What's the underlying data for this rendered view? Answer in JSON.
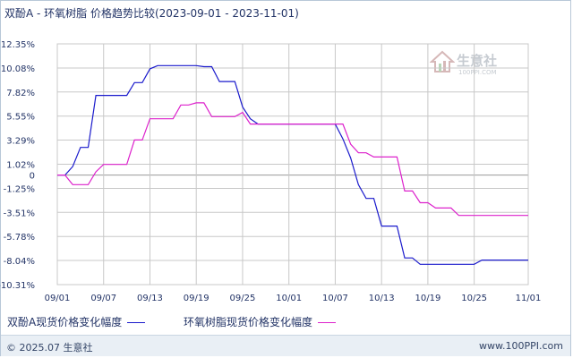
{
  "title": "双酚A - 环氧树脂 价格趋势比较(2023-09-01 - 2023-11-01)",
  "watermark": {
    "text": "生意社",
    "url": "100PPI.COM"
  },
  "footer": {
    "copyright": "© 2025.07 生意社",
    "url": "www.100PPI.com"
  },
  "colors": {
    "series1": "#1a1acc",
    "series2": "#dd22cc",
    "grid": "#c8c8c8",
    "zero_line": "#999999",
    "axis_text": "#223366"
  },
  "chart_data": {
    "type": "line",
    "title": "双酚A - 环氧树脂 价格趋势比较(2023-09-01 - 2023-11-01)",
    "xlabel": "",
    "ylabel": "",
    "x_range": [
      "2023-09-01",
      "2023-11-01"
    ],
    "ylim": [
      -10.31,
      12.35
    ],
    "y_ticks": [
      "12.35%",
      "10.08%",
      "7.82%",
      "5.55%",
      "3.29%",
      "1.02%",
      "0",
      "-1.25%",
      "-3.51%",
      "-5.78%",
      "-8.04%",
      "-10.31%"
    ],
    "y_tick_values": [
      12.35,
      10.08,
      7.82,
      5.55,
      3.29,
      1.02,
      0,
      -1.25,
      -3.51,
      -5.78,
      -8.04,
      -10.31
    ],
    "x_ticks": [
      "09/01",
      "09/07",
      "09/13",
      "09/19",
      "09/25",
      "10/01",
      "10/07",
      "10/13",
      "10/19",
      "10/25",
      "11/01"
    ],
    "x_tick_dates": [
      "2023-09-01",
      "2023-09-07",
      "2023-09-13",
      "2023-09-19",
      "2023-09-25",
      "2023-10-01",
      "2023-10-07",
      "2023-10-13",
      "2023-10-19",
      "2023-10-25",
      "2023-11-01"
    ],
    "grid": true,
    "legend_position": "bottom",
    "series": [
      {
        "name": "双酚A现货价格变化幅度",
        "color": "#1a1acc",
        "points": [
          [
            "2023-09-01",
            0
          ],
          [
            "2023-09-02",
            0
          ],
          [
            "2023-09-03",
            0.8
          ],
          [
            "2023-09-04",
            2.6
          ],
          [
            "2023-09-05",
            2.6
          ],
          [
            "2023-09-06",
            7.5
          ],
          [
            "2023-09-07",
            7.5
          ],
          [
            "2023-09-08",
            7.5
          ],
          [
            "2023-09-09",
            7.5
          ],
          [
            "2023-09-10",
            7.5
          ],
          [
            "2023-09-11",
            8.7
          ],
          [
            "2023-09-12",
            8.7
          ],
          [
            "2023-09-13",
            10.0
          ],
          [
            "2023-09-14",
            10.3
          ],
          [
            "2023-09-15",
            10.3
          ],
          [
            "2023-09-16",
            10.3
          ],
          [
            "2023-09-17",
            10.3
          ],
          [
            "2023-09-18",
            10.3
          ],
          [
            "2023-09-19",
            10.3
          ],
          [
            "2023-09-20",
            10.2
          ],
          [
            "2023-09-21",
            10.2
          ],
          [
            "2023-09-22",
            8.8
          ],
          [
            "2023-09-23",
            8.8
          ],
          [
            "2023-09-24",
            8.8
          ],
          [
            "2023-09-25",
            6.4
          ],
          [
            "2023-09-26",
            5.3
          ],
          [
            "2023-09-27",
            4.8
          ],
          [
            "2023-09-28",
            4.8
          ],
          [
            "2023-09-29",
            4.8
          ],
          [
            "2023-09-30",
            4.8
          ],
          [
            "2023-10-01",
            4.8
          ],
          [
            "2023-10-02",
            4.8
          ],
          [
            "2023-10-03",
            4.8
          ],
          [
            "2023-10-04",
            4.8
          ],
          [
            "2023-10-05",
            4.8
          ],
          [
            "2023-10-06",
            4.8
          ],
          [
            "2023-10-07",
            4.8
          ],
          [
            "2023-10-08",
            3.4
          ],
          [
            "2023-10-09",
            1.6
          ],
          [
            "2023-10-10",
            -0.9
          ],
          [
            "2023-10-11",
            -2.2
          ],
          [
            "2023-10-12",
            -2.2
          ],
          [
            "2023-10-13",
            -4.8
          ],
          [
            "2023-10-14",
            -4.8
          ],
          [
            "2023-10-15",
            -4.8
          ],
          [
            "2023-10-16",
            -7.8
          ],
          [
            "2023-10-17",
            -7.8
          ],
          [
            "2023-10-18",
            -8.4
          ],
          [
            "2023-10-19",
            -8.4
          ],
          [
            "2023-10-20",
            -8.4
          ],
          [
            "2023-10-21",
            -8.4
          ],
          [
            "2023-10-22",
            -8.4
          ],
          [
            "2023-10-23",
            -8.4
          ],
          [
            "2023-10-24",
            -8.4
          ],
          [
            "2023-10-25",
            -8.4
          ],
          [
            "2023-10-26",
            -8.0
          ],
          [
            "2023-10-27",
            -8.0
          ],
          [
            "2023-10-28",
            -8.0
          ],
          [
            "2023-10-29",
            -8.0
          ],
          [
            "2023-10-30",
            -8.0
          ],
          [
            "2023-10-31",
            -8.0
          ],
          [
            "2023-11-01",
            -8.0
          ]
        ]
      },
      {
        "name": "环氧树脂现货价格变化幅度",
        "color": "#dd22cc",
        "points": [
          [
            "2023-09-01",
            0
          ],
          [
            "2023-09-02",
            0
          ],
          [
            "2023-09-03",
            -0.9
          ],
          [
            "2023-09-04",
            -0.9
          ],
          [
            "2023-09-05",
            -0.9
          ],
          [
            "2023-09-06",
            0.3
          ],
          [
            "2023-09-07",
            1.0
          ],
          [
            "2023-09-08",
            1.0
          ],
          [
            "2023-09-09",
            1.0
          ],
          [
            "2023-09-10",
            1.0
          ],
          [
            "2023-09-11",
            3.3
          ],
          [
            "2023-09-12",
            3.3
          ],
          [
            "2023-09-13",
            5.3
          ],
          [
            "2023-09-14",
            5.3
          ],
          [
            "2023-09-15",
            5.3
          ],
          [
            "2023-09-16",
            5.3
          ],
          [
            "2023-09-17",
            6.6
          ],
          [
            "2023-09-18",
            6.6
          ],
          [
            "2023-09-19",
            6.8
          ],
          [
            "2023-09-20",
            6.8
          ],
          [
            "2023-09-21",
            5.5
          ],
          [
            "2023-09-22",
            5.5
          ],
          [
            "2023-09-23",
            5.5
          ],
          [
            "2023-09-24",
            5.5
          ],
          [
            "2023-09-25",
            5.9
          ],
          [
            "2023-09-26",
            4.8
          ],
          [
            "2023-09-27",
            4.8
          ],
          [
            "2023-09-28",
            4.8
          ],
          [
            "2023-09-29",
            4.8
          ],
          [
            "2023-09-30",
            4.8
          ],
          [
            "2023-10-01",
            4.8
          ],
          [
            "2023-10-02",
            4.8
          ],
          [
            "2023-10-03",
            4.8
          ],
          [
            "2023-10-04",
            4.8
          ],
          [
            "2023-10-05",
            4.8
          ],
          [
            "2023-10-06",
            4.8
          ],
          [
            "2023-10-07",
            4.8
          ],
          [
            "2023-10-08",
            4.8
          ],
          [
            "2023-10-09",
            2.9
          ],
          [
            "2023-10-10",
            2.1
          ],
          [
            "2023-10-11",
            2.1
          ],
          [
            "2023-10-12",
            1.7
          ],
          [
            "2023-10-13",
            1.7
          ],
          [
            "2023-10-14",
            1.7
          ],
          [
            "2023-10-15",
            1.7
          ],
          [
            "2023-10-16",
            -1.5
          ],
          [
            "2023-10-17",
            -1.5
          ],
          [
            "2023-10-18",
            -2.6
          ],
          [
            "2023-10-19",
            -2.6
          ],
          [
            "2023-10-20",
            -3.1
          ],
          [
            "2023-10-21",
            -3.1
          ],
          [
            "2023-10-22",
            -3.1
          ],
          [
            "2023-10-23",
            -3.8
          ],
          [
            "2023-10-24",
            -3.8
          ],
          [
            "2023-10-25",
            -3.8
          ],
          [
            "2023-10-26",
            -3.8
          ],
          [
            "2023-10-27",
            -3.8
          ],
          [
            "2023-10-28",
            -3.8
          ],
          [
            "2023-10-29",
            -3.8
          ],
          [
            "2023-10-30",
            -3.8
          ],
          [
            "2023-10-31",
            -3.8
          ],
          [
            "2023-11-01",
            -3.8
          ]
        ]
      }
    ]
  }
}
